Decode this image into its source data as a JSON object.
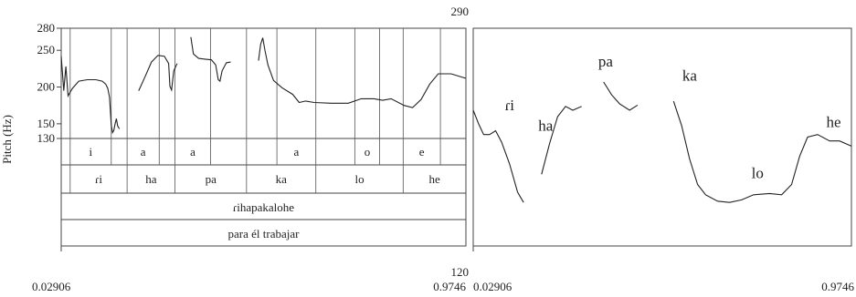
{
  "chart_data": [
    {
      "type": "line",
      "panel": "pitch-track-with-annotation-tiers",
      "ylabel": "Pitch (Hz)",
      "ylim": [
        130,
        280
      ],
      "yticks": [
        "280",
        "250",
        "200",
        "150",
        "130"
      ],
      "yticks_values": [
        280,
        250,
        200,
        150,
        130
      ],
      "xlim": [
        0.02906,
        0.9746
      ],
      "x_start_label": "0.02906",
      "x_end_label": "0.9746",
      "vowel_tier": [
        "i",
        "a",
        "a",
        "a",
        "o",
        "e"
      ],
      "syllable_tier": [
        "ɾi",
        "ha",
        "pa",
        "ka",
        "lo",
        "he"
      ],
      "word_tier": "ɾihapakalohe",
      "gloss_tier": "para él trabajar",
      "series": [
        {
          "segments": [
            [
              [
                0.029,
                242
              ],
              [
                0.035,
                195
              ],
              [
                0.04,
                228
              ],
              [
                0.045,
                188
              ],
              [
                0.055,
                198
              ],
              [
                0.07,
                208
              ],
              [
                0.09,
                210
              ],
              [
                0.11,
                210
              ],
              [
                0.125,
                208
              ],
              [
                0.133,
                204
              ],
              [
                0.138,
                198
              ],
              [
                0.142,
                186
              ],
              [
                0.146,
                148
              ],
              [
                0.149,
                138
              ],
              [
                0.152,
                141
              ],
              [
                0.155,
                150
              ],
              [
                0.158,
                157
              ],
              [
                0.161,
                147
              ],
              [
                0.165,
                143
              ]
            ],
            [
              [
                0.21,
                195
              ],
              [
                0.225,
                214
              ],
              [
                0.24,
                234
              ],
              [
                0.255,
                243
              ],
              [
                0.27,
                242
              ],
              [
                0.28,
                232
              ],
              [
                0.283,
                201
              ],
              [
                0.287,
                196
              ],
              [
                0.292,
                222
              ],
              [
                0.3,
                232
              ]
            ],
            [
              [
                0.332,
                268
              ],
              [
                0.338,
                245
              ],
              [
                0.35,
                239
              ],
              [
                0.365,
                238
              ],
              [
                0.38,
                237
              ],
              [
                0.39,
                230
              ],
              [
                0.396,
                210
              ],
              [
                0.4,
                208
              ],
              [
                0.405,
                222
              ],
              [
                0.415,
                233
              ],
              [
                0.425,
                234
              ]
            ],
            [
              [
                0.49,
                236
              ],
              [
                0.495,
                258
              ],
              [
                0.5,
                267
              ],
              [
                0.505,
                250
              ],
              [
                0.512,
                230
              ],
              [
                0.525,
                209
              ],
              [
                0.545,
                199
              ],
              [
                0.57,
                190
              ],
              [
                0.585,
                179
              ],
              [
                0.6,
                181
              ],
              [
                0.62,
                179
              ],
              [
                0.66,
                178
              ],
              [
                0.7,
                178
              ],
              [
                0.73,
                184
              ],
              [
                0.76,
                184
              ],
              [
                0.78,
                182
              ],
              [
                0.8,
                184
              ],
              [
                0.83,
                175
              ],
              [
                0.85,
                172
              ],
              [
                0.87,
                183
              ],
              [
                0.89,
                204
              ],
              [
                0.91,
                218
              ],
              [
                0.94,
                218
              ],
              [
                0.974,
                212
              ]
            ]
          ]
        }
      ],
      "boundaries": [
        0.05,
        0.146,
        0.183,
        0.258,
        0.295,
        0.378,
        0.462,
        0.533,
        0.624,
        0.715,
        0.773,
        0.828,
        0.915
      ]
    },
    {
      "type": "line",
      "panel": "stylized-contour",
      "ylim": [
        120,
        290
      ],
      "ytop_label": "290",
      "ybottom_label": "120",
      "xlim": [
        0.02906,
        0.9746
      ],
      "x_start_label": "0.02906",
      "x_end_label": "0.9746",
      "syllable_labels": [
        {
          "text": "ɾi",
          "x": 0.12,
          "y": 226
        },
        {
          "text": "ha",
          "x": 0.21,
          "y": 210
        },
        {
          "text": "pa",
          "x": 0.36,
          "y": 260
        },
        {
          "text": "ka",
          "x": 0.57,
          "y": 249
        },
        {
          "text": "lo",
          "x": 0.74,
          "y": 173
        },
        {
          "text": "he",
          "x": 0.93,
          "y": 213
        }
      ],
      "series": [
        {
          "segments": [
            [
              [
                0.029,
                226
              ],
              [
                0.043,
                215
              ],
              [
                0.055,
                207
              ],
              [
                0.07,
                207
              ],
              [
                0.085,
                210
              ],
              [
                0.1,
                201
              ],
              [
                0.12,
                184
              ],
              [
                0.14,
                162
              ],
              [
                0.155,
                154
              ]
            ],
            [
              [
                0.2,
                176
              ],
              [
                0.22,
                200
              ],
              [
                0.24,
                221
              ],
              [
                0.26,
                229
              ],
              [
                0.278,
                226
              ],
              [
                0.3,
                229
              ]
            ],
            [
              [
                0.355,
                248
              ],
              [
                0.375,
                238
              ],
              [
                0.395,
                231
              ],
              [
                0.42,
                226
              ],
              [
                0.44,
                230
              ]
            ],
            [
              [
                0.53,
                233
              ],
              [
                0.55,
                214
              ],
              [
                0.57,
                188
              ],
              [
                0.59,
                168
              ],
              [
                0.61,
                160
              ],
              [
                0.64,
                155
              ],
              [
                0.67,
                154
              ],
              [
                0.7,
                156
              ],
              [
                0.73,
                160
              ],
              [
                0.77,
                161
              ],
              [
                0.8,
                160
              ],
              [
                0.825,
                168
              ],
              [
                0.845,
                190
              ],
              [
                0.865,
                205
              ],
              [
                0.89,
                207
              ],
              [
                0.92,
                202
              ],
              [
                0.945,
                202
              ],
              [
                0.974,
                198
              ]
            ]
          ]
        }
      ]
    }
  ]
}
